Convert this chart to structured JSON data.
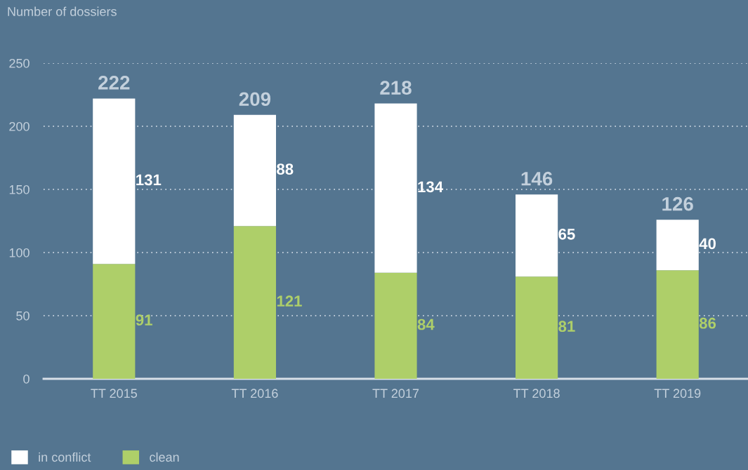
{
  "chart_data": {
    "type": "bar",
    "stacked": true,
    "ylabel": "Number of dossiers",
    "categories": [
      "TT 2015",
      "TT 2016",
      "TT 2017",
      "TT 2018",
      "TT 2019"
    ],
    "series": [
      {
        "name": "clean",
        "color": "#aecf69",
        "values": [
          91,
          121,
          84,
          81,
          86
        ]
      },
      {
        "name": "in conflict",
        "color": "#ffffff",
        "values": [
          131,
          88,
          134,
          65,
          40
        ]
      }
    ],
    "totals": [
      "222",
      "209",
      "218",
      "146",
      "126"
    ],
    "data_labels": true,
    "ylim": [
      0,
      250
    ],
    "yticks": [
      0,
      50,
      100,
      150,
      200,
      250
    ],
    "grid": "y",
    "legend": "bottom left"
  }
}
